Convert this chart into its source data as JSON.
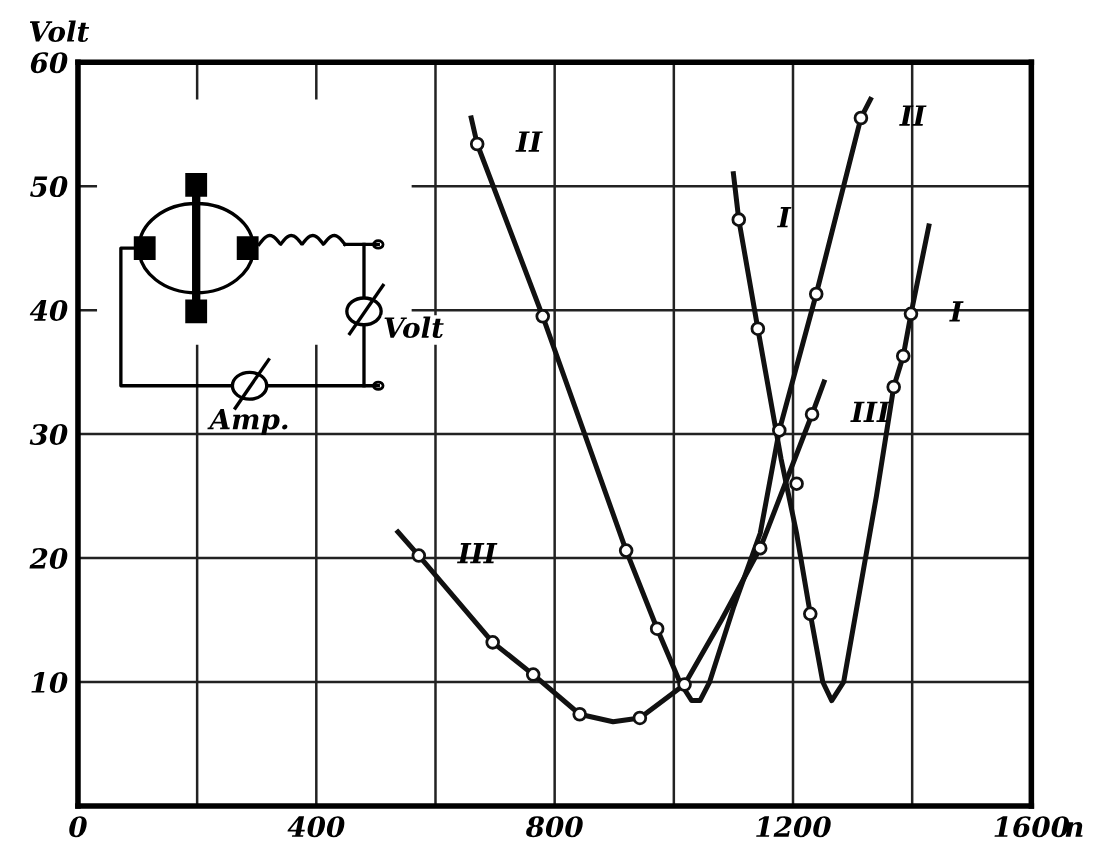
{
  "chart_data": {
    "type": "line",
    "ylabel": "Volt",
    "xlabel": "n",
    "xlim": [
      0,
      1600
    ],
    "ylim": [
      0,
      60
    ],
    "xticks": [
      0,
      {
        "value": 200,
        "label": null
      },
      400,
      {
        "value": 600,
        "label": null
      },
      800,
      {
        "value": 1000,
        "label": null
      },
      1200,
      {
        "value": 1400,
        "label": null
      },
      1600
    ],
    "yticks": [
      {
        "value": 0,
        "label": null
      },
      10,
      20,
      30,
      40,
      50,
      60
    ],
    "grid": true,
    "line_style": "solid",
    "series": [
      {
        "name": "I",
        "color": "#111111",
        "x": [
          1100,
          1109,
          1141,
          1180,
          1206,
          1229,
          1250,
          1265,
          1285,
          1340,
          1369,
          1385,
          1398,
          1428
        ],
        "values": [
          51,
          47.3,
          38.5,
          28,
          22,
          15.5,
          10,
          8.5,
          10,
          25,
          33.8,
          36.3,
          39.7,
          46.8
        ]
      },
      {
        "name": "II",
        "color": "#111111",
        "x": [
          660,
          670,
          780,
          920,
          972,
          1010,
          1030,
          1044,
          1060,
          1100,
          1145,
          1177,
          1239,
          1314,
          1330
        ],
        "values": [
          55.5,
          53.4,
          39.5,
          20.6,
          14.3,
          10,
          8.5,
          8.5,
          10,
          16,
          22,
          30.3,
          41.3,
          55.5,
          57
        ]
      },
      {
        "name": "III",
        "color": "#111111",
        "x": [
          537,
          572,
          696,
          764,
          842,
          898,
          943,
          1018,
          1080,
          1145,
          1232,
          1252
        ],
        "values": [
          22.1,
          20.2,
          13.2,
          10.6,
          7.4,
          6.8,
          7.1,
          9.8,
          15,
          20.8,
          31.6,
          34.2
        ]
      },
      {
        "type": "scatter",
        "color": "#111111",
        "x": [
          1109,
          1141,
          1206,
          1229,
          1369,
          1385,
          1398,
          670,
          780,
          920,
          972,
          1177,
          1239,
          1314,
          572,
          696,
          764,
          842,
          943,
          1018,
          1145,
          1232
        ],
        "values": [
          47.3,
          38.5,
          26,
          15.5,
          33.8,
          36.3,
          39.7,
          53.4,
          39.5,
          20.6,
          14.3,
          30.3,
          41.3,
          55.5,
          20.2,
          13.2,
          10.6,
          7.4,
          7.1,
          9.8,
          20.8,
          31.6
        ]
      }
    ],
    "annotations": [
      "Volt",
      "Amp."
    ]
  }
}
